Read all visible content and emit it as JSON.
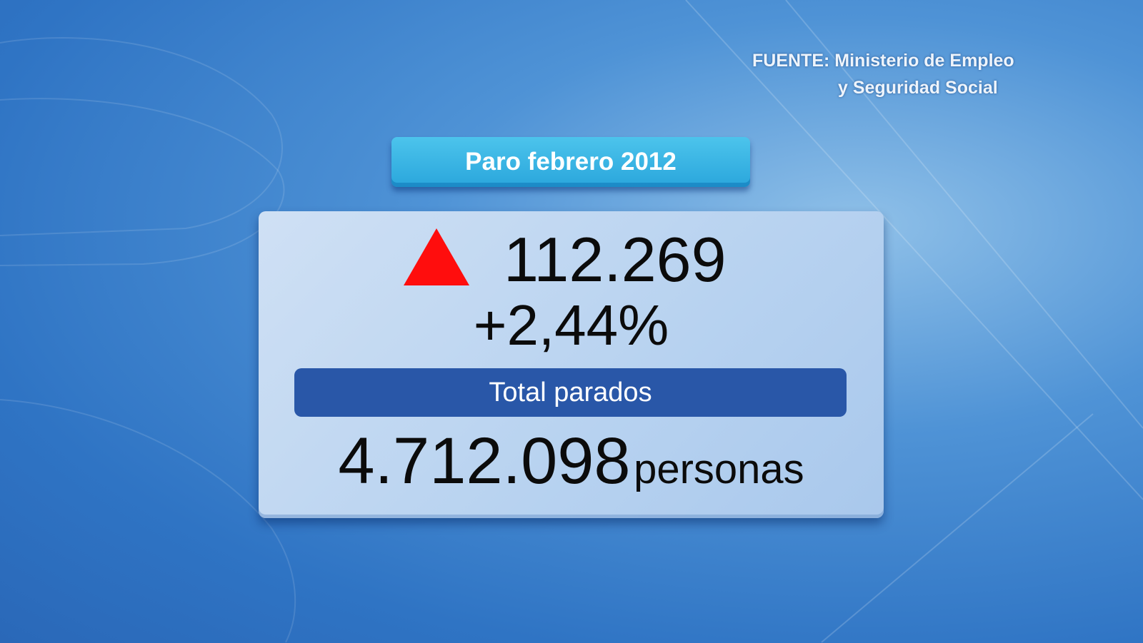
{
  "source": {
    "line1": "FUENTE: Ministerio de Empleo",
    "line2": "y Seguridad Social"
  },
  "title": "Paro febrero 2012",
  "change": {
    "direction_icon": "red-up-triangle",
    "absolute": "112.269",
    "percent": "+2,44%"
  },
  "total": {
    "label": "Total parados",
    "value": "4.712.098",
    "unit": "personas"
  },
  "colors": {
    "up_indicator": "#ff0d0d",
    "title_pill": "#3bb6e6",
    "label_bar": "#2957a8"
  }
}
